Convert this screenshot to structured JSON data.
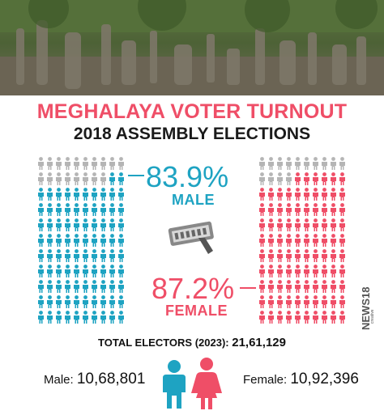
{
  "title": "MEGHALAYA VOTER TURNOUT",
  "subtitle": "2018 ASSEMBLY ELECTIONS",
  "male": {
    "percent": "83.9%",
    "label": "MALE",
    "turnout_fraction": 0.839,
    "count_label": "Male:",
    "count": "10,68,801"
  },
  "female": {
    "percent": "87.2%",
    "label": "FEMALE",
    "turnout_fraction": 0.872,
    "count_label": "Female:",
    "count": "10,92,396"
  },
  "total": {
    "label": "TOTAL ELECTORS (2023):",
    "value": "21,61,129"
  },
  "brand": {
    "name": "NEWS18",
    "sub": "creative"
  },
  "colors": {
    "male": "#1ea3c2",
    "female": "#ef4e67",
    "inactive": "#b5b5b5"
  },
  "icons": [
    "person-icon",
    "voting-machine-icon",
    "man-icon",
    "woman-icon"
  ]
}
